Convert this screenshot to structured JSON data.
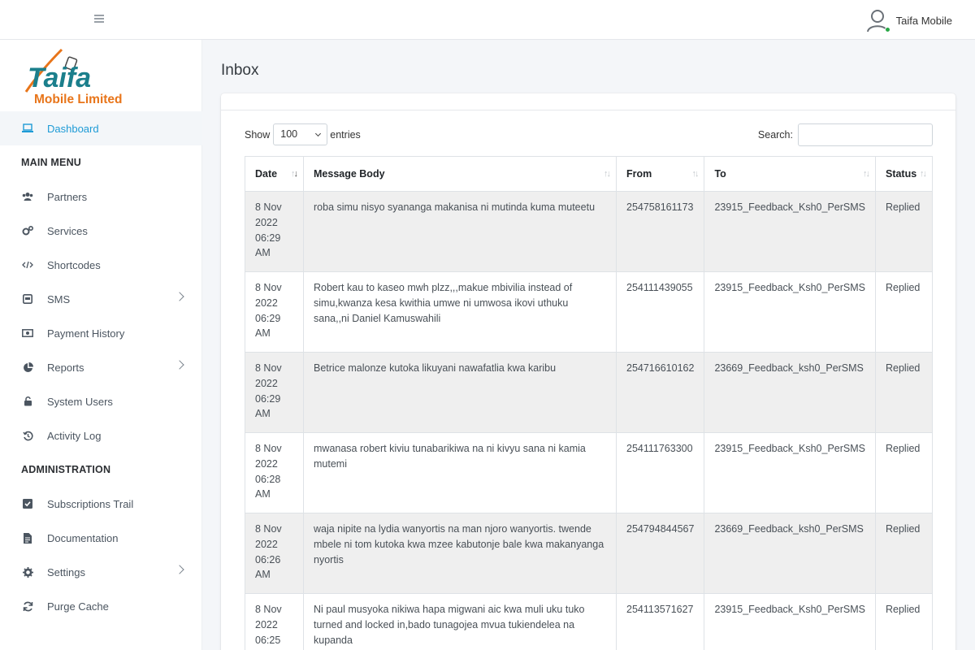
{
  "header": {
    "user_name": "Taifa Mobile"
  },
  "logo": {
    "line1": "Taifa",
    "line2": "Mobile Limited"
  },
  "sidebar": {
    "dashboard": "Dashboard",
    "main_menu_title": "MAIN MENU",
    "main_items": [
      {
        "label": "Partners",
        "icon": "users-icon"
      },
      {
        "label": "Services",
        "icon": "cogs-icon"
      },
      {
        "label": "Shortcodes",
        "icon": "code-icon"
      },
      {
        "label": "SMS",
        "icon": "sms-icon",
        "has_submenu": true
      },
      {
        "label": "Payment History",
        "icon": "money-icon"
      },
      {
        "label": "Reports",
        "icon": "pie-chart-icon",
        "has_submenu": true
      },
      {
        "label": "System Users",
        "icon": "lock-icon"
      },
      {
        "label": "Activity Log",
        "icon": "history-icon"
      }
    ],
    "admin_title": "ADMINISTRATION",
    "admin_items": [
      {
        "label": "Subscriptions Trail",
        "icon": "check-square-icon"
      },
      {
        "label": "Documentation",
        "icon": "file-icon"
      },
      {
        "label": "Settings",
        "icon": "gear-icon",
        "has_submenu": true
      },
      {
        "label": "Purge Cache",
        "icon": "sync-icon"
      }
    ]
  },
  "page": {
    "title": "Inbox"
  },
  "table_controls": {
    "show_label": "Show",
    "entries_value": "100",
    "entries_label": "entries",
    "search_label": "Search:",
    "search_value": ""
  },
  "table": {
    "columns": [
      "Date",
      "Message Body",
      "From",
      "To",
      "Status"
    ],
    "rows": [
      {
        "date": "8 Nov 2022 06:29 AM",
        "body": "roba simu nisyo syananga makanisa ni mutinda kuma muteetu",
        "from": "254758161173",
        "to": "23915_Feedback_Ksh0_PerSMS",
        "status": "Replied"
      },
      {
        "date": "8 Nov 2022 06:29 AM",
        "body": "Robert kau to kaseo mwh plzz,,,makue mbivilia instead of simu,kwanza kesa kwithia umwe ni umwosa ikovi uthuku sana,,ni Daniel Kamuswahili",
        "from": "254111439055",
        "to": "23915_Feedback_Ksh0_PerSMS",
        "status": "Replied"
      },
      {
        "date": "8 Nov 2022 06:29 AM",
        "body": "Betrice malonze kutoka likuyani nawafatlia kwa karibu",
        "from": "254716610162",
        "to": "23669_Feedback_ksh0_PerSMS",
        "status": "Replied"
      },
      {
        "date": "8 Nov 2022 06:28 AM",
        "body": "mwanasa robert kiviu tunabarikiwa na ni kivyu sana ni kamia mutemi",
        "from": "254111763300",
        "to": "23915_Feedback_Ksh0_PerSMS",
        "status": "Replied"
      },
      {
        "date": "8 Nov 2022 06:26 AM",
        "body": "waja nipite na lydia wanyortis na man njoro wanyortis. twende mbele ni tom kutoka kwa mzee kabutonje bale kwa makanyanga nyortis",
        "from": "254794844567",
        "to": "23669_Feedback_ksh0_PerSMS",
        "status": "Replied"
      },
      {
        "date": "8 Nov 2022 06:25",
        "body": "Ni paul musyoka nikiwa hapa migwani aic kwa muli uku tuko turned and locked in,bado tunagojea mvua tukiendelea na kupanda",
        "from": "254113571627",
        "to": "23915_Feedback_Ksh0_PerSMS",
        "status": "Replied"
      }
    ]
  },
  "colors": {
    "accent": "#1e9bd6",
    "logo_orange": "#e8751a",
    "logo_teal": "#1b7f8c",
    "online": "#28a745"
  }
}
